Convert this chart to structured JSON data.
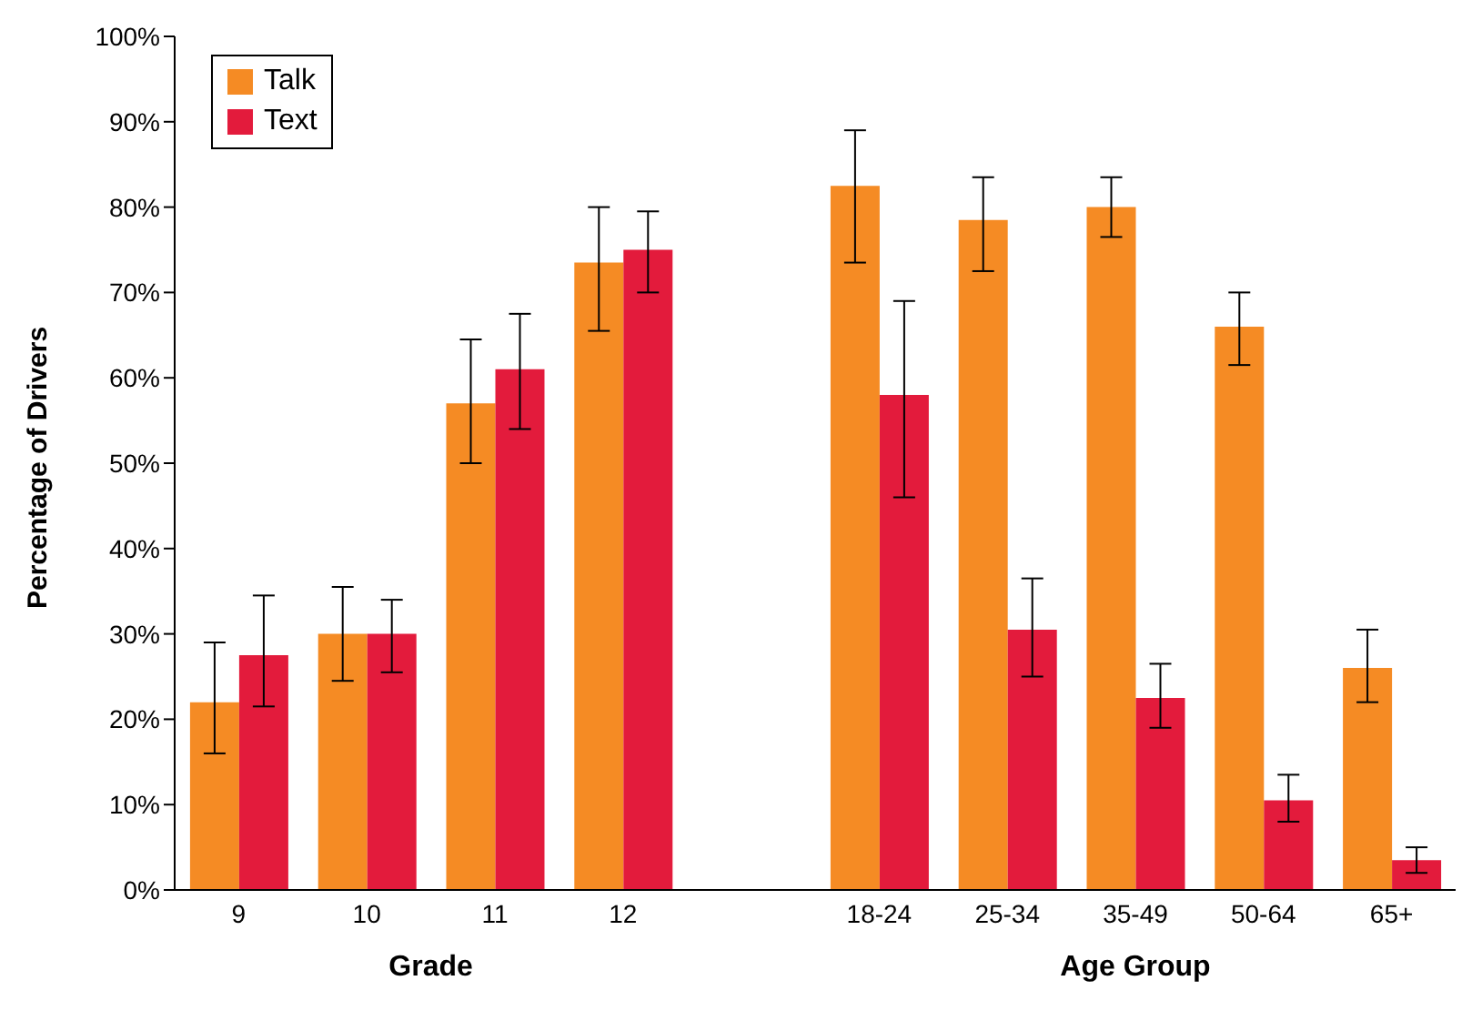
{
  "chart_data": {
    "type": "bar",
    "ylabel": "Percentage of Drivers",
    "xlabel": "Grade",
    "annotations": [
      "Age Group"
    ],
    "categories": [
      "9",
      "10",
      "11",
      "12",
      null,
      "18-24",
      "25-34",
      "35-49",
      "50-64",
      "65+"
    ],
    "series": [
      {
        "name": "Talk",
        "color": "#f58b24",
        "values": [
          22,
          30,
          57,
          73.5,
          null,
          82.5,
          78.5,
          80,
          66,
          26
        ],
        "errors": [
          [
            16,
            29
          ],
          [
            24.5,
            35.5
          ],
          [
            50,
            64.5
          ],
          [
            65.5,
            80
          ],
          null,
          [
            73.5,
            89
          ],
          [
            72.5,
            83.5
          ],
          [
            76.5,
            83.5
          ],
          [
            61.5,
            70
          ],
          [
            22,
            30.5
          ]
        ]
      },
      {
        "name": "Text",
        "color": "#e31b3c",
        "values": [
          27.5,
          30,
          61,
          75,
          null,
          58,
          30.5,
          22.5,
          10.5,
          3.5
        ],
        "errors": [
          [
            21.5,
            34.5
          ],
          [
            25.5,
            34
          ],
          [
            54,
            67.5
          ],
          [
            70,
            79.5
          ],
          null,
          [
            46,
            69
          ],
          [
            25,
            36.5
          ],
          [
            19,
            26.5
          ],
          [
            8,
            13.5
          ],
          [
            2,
            5
          ]
        ]
      }
    ],
    "ylim": [
      0,
      100
    ],
    "yticks": [
      {
        "value": 0,
        "label": "0%"
      },
      {
        "value": 10,
        "label": "10%"
      },
      {
        "value": 20,
        "label": "20%"
      },
      {
        "value": 30,
        "label": "30%"
      },
      {
        "value": 40,
        "label": "40%"
      },
      {
        "value": 50,
        "label": "50%"
      },
      {
        "value": 60,
        "label": "60%"
      },
      {
        "value": 70,
        "label": "70%"
      },
      {
        "value": 80,
        "label": "80%"
      },
      {
        "value": 90,
        "label": "90%"
      },
      {
        "value": 100,
        "label": "100%"
      }
    ],
    "grid": false,
    "legend": "top left"
  }
}
